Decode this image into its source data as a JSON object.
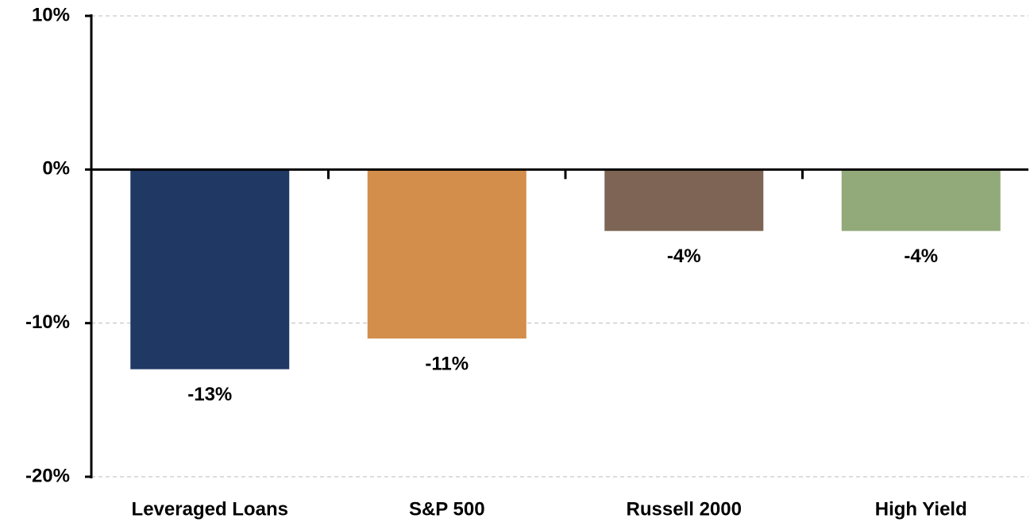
{
  "chart_data": {
    "type": "bar",
    "categories": [
      "Leveraged Loans",
      "S&P 500",
      "Russell 2000",
      "High Yield"
    ],
    "values": [
      -13,
      -11,
      -4,
      -4
    ],
    "value_labels": [
      "-13%",
      "-11%",
      "-4%",
      "-4%"
    ],
    "colors": [
      "#1f3864",
      "#d38e4b",
      "#7d6454",
      "#92a97a"
    ],
    "ylim": [
      -20,
      10
    ],
    "yticks": [
      {
        "value": -20,
        "label": "-20%"
      },
      {
        "value": -10,
        "label": "-10%"
      },
      {
        "value": 0,
        "label": "0%"
      },
      {
        "value": 10,
        "label": "10%"
      }
    ],
    "grid": true
  }
}
